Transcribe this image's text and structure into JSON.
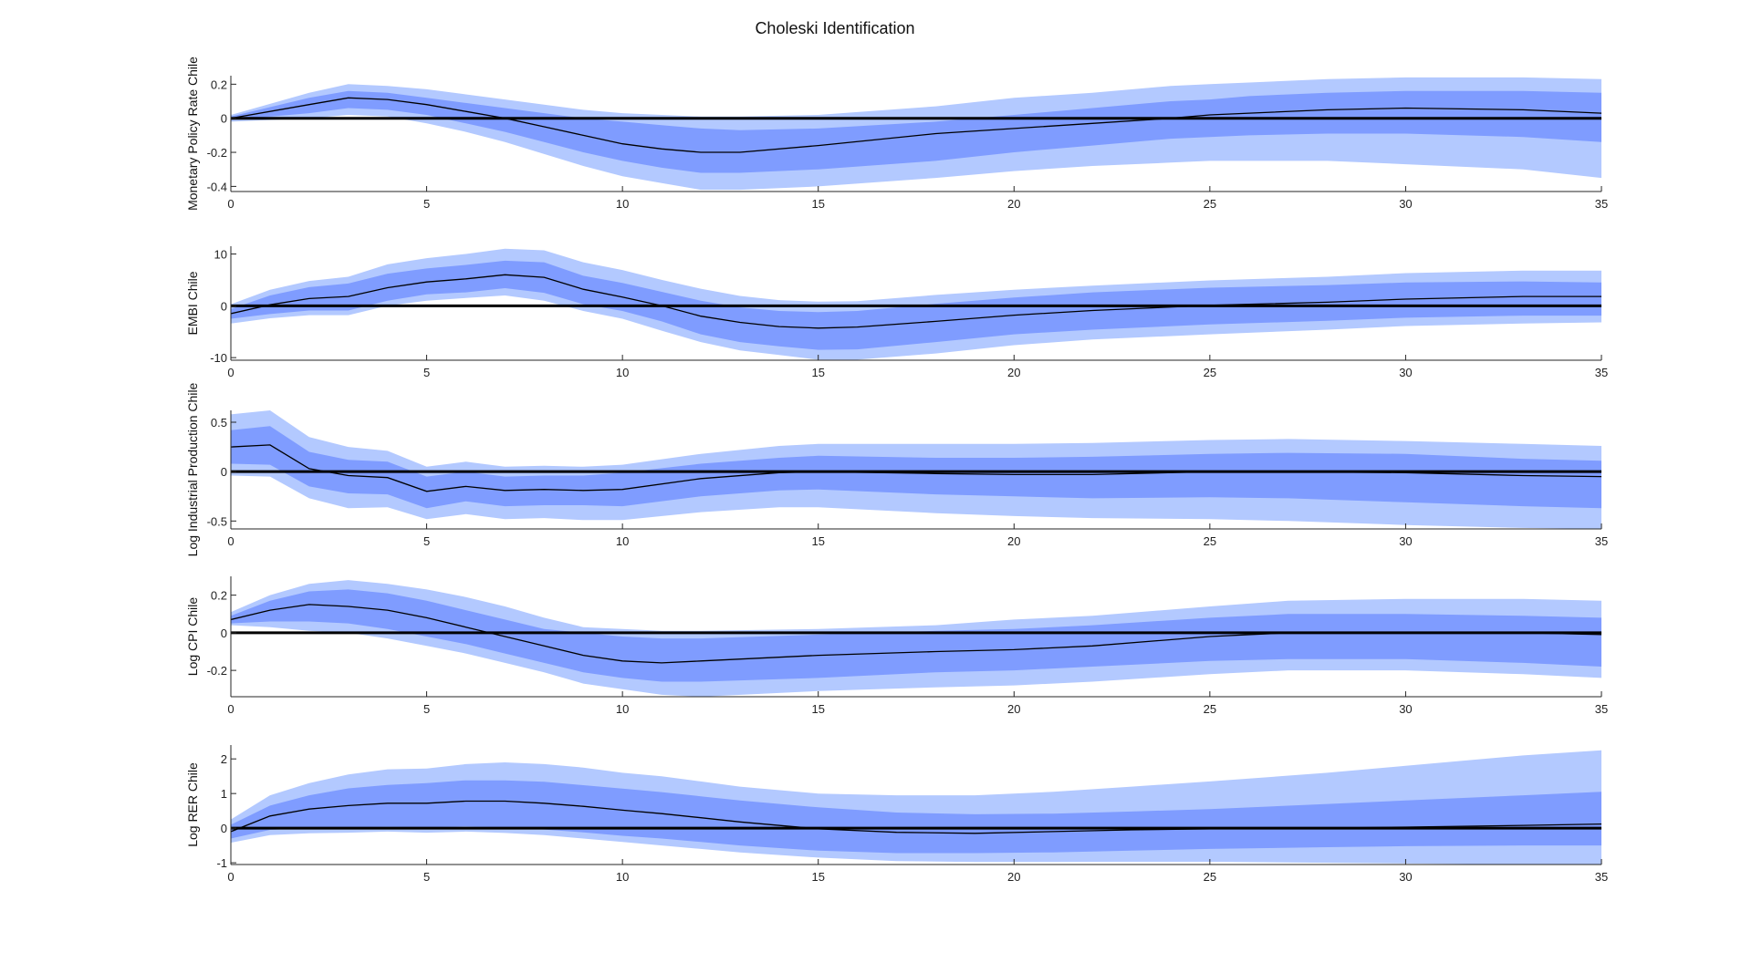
{
  "figure_title": "Choleski Identification",
  "colors": {
    "outer_band": "#b3c9ff",
    "inner_band": "#7f9cff",
    "median": "#000000",
    "zero_line": "#000000",
    "axis": "#262626"
  },
  "chart_data": [
    {
      "type": "area",
      "ylabel": "Monetary Policy Rate Chile",
      "xlim": [
        0,
        35
      ],
      "ylim": [
        -0.43,
        0.25
      ],
      "x_ticks": [
        0,
        5,
        10,
        15,
        20,
        25,
        30,
        35
      ],
      "y_ticks": [
        -0.4,
        -0.2,
        0,
        0.2
      ],
      "y_tick_labels": [
        "-0.4",
        "-0.2",
        "0",
        "0.2"
      ],
      "x": [
        0,
        2,
        3,
        4,
        5,
        6,
        7,
        8,
        9,
        10,
        11,
        12,
        13,
        15,
        18,
        20,
        22,
        24,
        25,
        26,
        28,
        30,
        33,
        35
      ],
      "median": [
        0,
        0.08,
        0.12,
        0.11,
        0.08,
        0.04,
        0.0,
        -0.05,
        -0.1,
        -0.15,
        -0.18,
        -0.2,
        -0.2,
        -0.16,
        -0.09,
        -0.06,
        -0.03,
        0.0,
        0.02,
        0.03,
        0.05,
        0.06,
        0.05,
        0.03
      ],
      "inner_lower": [
        -0.01,
        0.03,
        0.06,
        0.05,
        0.02,
        -0.03,
        -0.08,
        -0.14,
        -0.2,
        -0.25,
        -0.29,
        -0.32,
        -0.32,
        -0.3,
        -0.25,
        -0.2,
        -0.16,
        -0.12,
        -0.11,
        -0.1,
        -0.09,
        -0.09,
        -0.11,
        -0.14
      ],
      "inner_upper": [
        0.01,
        0.12,
        0.16,
        0.15,
        0.12,
        0.09,
        0.06,
        0.03,
        0.0,
        -0.02,
        -0.04,
        -0.06,
        -0.07,
        -0.06,
        -0.02,
        0.02,
        0.06,
        0.1,
        0.11,
        0.13,
        0.15,
        0.16,
        0.16,
        0.15
      ],
      "outer_lower": [
        -0.02,
        0.0,
        0.02,
        0.01,
        -0.03,
        -0.08,
        -0.14,
        -0.21,
        -0.28,
        -0.34,
        -0.38,
        -0.42,
        -0.42,
        -0.4,
        -0.35,
        -0.31,
        -0.28,
        -0.26,
        -0.25,
        -0.25,
        -0.25,
        -0.27,
        -0.3,
        -0.35
      ],
      "outer_upper": [
        0.02,
        0.15,
        0.2,
        0.19,
        0.17,
        0.14,
        0.11,
        0.08,
        0.05,
        0.03,
        0.02,
        0.01,
        0.01,
        0.02,
        0.07,
        0.12,
        0.15,
        0.19,
        0.2,
        0.21,
        0.23,
        0.24,
        0.24,
        0.23
      ]
    },
    {
      "type": "area",
      "ylabel": "EMBI Chile",
      "xlim": [
        0,
        35
      ],
      "ylim": [
        -10.5,
        11.5
      ],
      "x_ticks": [
        0,
        5,
        10,
        15,
        20,
        25,
        30,
        35
      ],
      "y_ticks": [
        -10,
        0,
        10
      ],
      "y_tick_labels": [
        "-10",
        "0",
        "10"
      ],
      "x": [
        0,
        1,
        2,
        3,
        4,
        5,
        6,
        7,
        8,
        9,
        10,
        11,
        12,
        13,
        14,
        15,
        16,
        18,
        20,
        22,
        25,
        28,
        30,
        33,
        35
      ],
      "median": [
        -1.5,
        0.2,
        1.4,
        1.8,
        3.5,
        4.6,
        5.2,
        6.0,
        5.5,
        3.2,
        1.7,
        0.0,
        -2.0,
        -3.2,
        -4.0,
        -4.3,
        -4.1,
        -3.0,
        -1.8,
        -0.9,
        0.1,
        0.7,
        1.3,
        1.8,
        1.8
      ],
      "inner_lower": [
        -2.5,
        -1.6,
        -0.9,
        -0.9,
        1.0,
        2.2,
        2.6,
        3.4,
        2.5,
        0.3,
        -1.0,
        -3.0,
        -5.5,
        -7.0,
        -7.8,
        -8.5,
        -8.4,
        -7.0,
        -5.5,
        -4.6,
        -3.6,
        -2.9,
        -2.3,
        -1.9,
        -1.9
      ],
      "inner_upper": [
        -0.6,
        2.0,
        3.6,
        4.3,
        6.2,
        7.2,
        7.9,
        8.7,
        8.4,
        5.8,
        4.4,
        2.7,
        1.0,
        -0.3,
        -1.0,
        -1.2,
        -1.0,
        0.4,
        1.6,
        2.6,
        3.5,
        4.0,
        4.5,
        4.7,
        4.5
      ],
      "outer_lower": [
        -3.4,
        -2.4,
        -1.8,
        -1.8,
        0.0,
        1.0,
        1.5,
        2.0,
        1.0,
        -1.0,
        -2.5,
        -4.8,
        -7.0,
        -8.6,
        -9.5,
        -10.4,
        -10.4,
        -9.2,
        -7.6,
        -6.5,
        -5.5,
        -4.6,
        -3.9,
        -3.4,
        -3.2
      ],
      "outer_upper": [
        0.3,
        3.1,
        4.8,
        5.6,
        8.0,
        9.2,
        10.0,
        11.0,
        10.7,
        8.4,
        6.9,
        5.0,
        3.3,
        1.9,
        1.1,
        0.8,
        0.9,
        2.1,
        3.1,
        3.9,
        4.9,
        5.6,
        6.3,
        6.8,
        6.8
      ]
    },
    {
      "type": "area",
      "ylabel": "Log Industrial Production Chile",
      "xlim": [
        0,
        35
      ],
      "ylim": [
        -0.58,
        0.62
      ],
      "x_ticks": [
        0,
        5,
        10,
        15,
        20,
        25,
        30,
        35
      ],
      "y_ticks": [
        -0.5,
        0,
        0.5
      ],
      "y_tick_labels": [
        "-0.5",
        "0",
        "0.5"
      ],
      "x": [
        0,
        1,
        2,
        3,
        4,
        5,
        6,
        7,
        8,
        9,
        10,
        12,
        14,
        15,
        18,
        20,
        22,
        25,
        27,
        30,
        33,
        35
      ],
      "median": [
        0.25,
        0.27,
        0.03,
        -0.04,
        -0.06,
        -0.2,
        -0.15,
        -0.19,
        -0.18,
        -0.19,
        -0.18,
        -0.07,
        -0.01,
        0.0,
        -0.02,
        -0.03,
        -0.03,
        0.0,
        0.0,
        -0.01,
        -0.04,
        -0.05
      ],
      "inner_lower": [
        0.08,
        0.07,
        -0.15,
        -0.22,
        -0.23,
        -0.37,
        -0.3,
        -0.35,
        -0.34,
        -0.34,
        -0.35,
        -0.25,
        -0.19,
        -0.18,
        -0.23,
        -0.25,
        -0.27,
        -0.26,
        -0.27,
        -0.31,
        -0.35,
        -0.37
      ],
      "inner_upper": [
        0.42,
        0.46,
        0.2,
        0.12,
        0.1,
        -0.05,
        0.0,
        -0.05,
        -0.04,
        -0.04,
        -0.01,
        0.08,
        0.14,
        0.16,
        0.14,
        0.14,
        0.15,
        0.18,
        0.19,
        0.18,
        0.13,
        0.11
      ],
      "outer_lower": [
        -0.04,
        -0.05,
        -0.27,
        -0.37,
        -0.36,
        -0.48,
        -0.43,
        -0.48,
        -0.47,
        -0.49,
        -0.49,
        -0.41,
        -0.36,
        -0.36,
        -0.42,
        -0.45,
        -0.47,
        -0.48,
        -0.5,
        -0.54,
        -0.57,
        -0.58
      ],
      "outer_upper": [
        0.58,
        0.62,
        0.35,
        0.25,
        0.21,
        0.05,
        0.1,
        0.05,
        0.06,
        0.05,
        0.07,
        0.18,
        0.26,
        0.28,
        0.28,
        0.28,
        0.29,
        0.32,
        0.33,
        0.31,
        0.28,
        0.26
      ]
    },
    {
      "type": "area",
      "ylabel": "Log CPI Chile",
      "xlim": [
        0,
        35
      ],
      "ylim": [
        -0.34,
        0.3
      ],
      "x_ticks": [
        0,
        5,
        10,
        15,
        20,
        25,
        30,
        35
      ],
      "y_ticks": [
        -0.2,
        0,
        0.2
      ],
      "y_tick_labels": [
        "-0.2",
        "0",
        "0.2"
      ],
      "x": [
        0,
        1,
        2,
        3,
        4,
        5,
        6,
        7,
        8,
        9,
        10,
        11,
        12,
        15,
        18,
        20,
        22,
        25,
        27,
        30,
        33,
        35
      ],
      "median": [
        0.07,
        0.12,
        0.15,
        0.14,
        0.12,
        0.08,
        0.03,
        -0.02,
        -0.07,
        -0.12,
        -0.15,
        -0.16,
        -0.15,
        -0.12,
        -0.1,
        -0.09,
        -0.07,
        -0.02,
        0.0,
        0.0,
        0.0,
        -0.01
      ],
      "inner_lower": [
        0.05,
        0.06,
        0.06,
        0.05,
        0.02,
        -0.02,
        -0.06,
        -0.11,
        -0.16,
        -0.21,
        -0.24,
        -0.26,
        -0.26,
        -0.24,
        -0.21,
        -0.2,
        -0.18,
        -0.15,
        -0.14,
        -0.14,
        -0.16,
        -0.18
      ],
      "inner_upper": [
        0.09,
        0.17,
        0.22,
        0.23,
        0.21,
        0.17,
        0.12,
        0.07,
        0.02,
        0.0,
        -0.02,
        -0.03,
        -0.03,
        -0.01,
        0.01,
        0.02,
        0.04,
        0.08,
        0.1,
        0.1,
        0.09,
        0.08
      ],
      "outer_lower": [
        0.04,
        0.03,
        0.01,
        0.0,
        -0.03,
        -0.07,
        -0.11,
        -0.16,
        -0.21,
        -0.27,
        -0.3,
        -0.33,
        -0.34,
        -0.31,
        -0.29,
        -0.28,
        -0.26,
        -0.22,
        -0.2,
        -0.2,
        -0.22,
        -0.24
      ],
      "outer_upper": [
        0.11,
        0.2,
        0.26,
        0.28,
        0.26,
        0.23,
        0.19,
        0.14,
        0.08,
        0.03,
        0.02,
        0.01,
        0.01,
        0.02,
        0.04,
        0.07,
        0.09,
        0.14,
        0.17,
        0.18,
        0.18,
        0.17
      ]
    },
    {
      "type": "area",
      "ylabel": "Log RER Chile",
      "xlim": [
        0,
        35
      ],
      "ylim": [
        -1.05,
        2.4
      ],
      "x_ticks": [
        0,
        5,
        10,
        15,
        20,
        25,
        30,
        35
      ],
      "y_ticks": [
        -1,
        0,
        1,
        2
      ],
      "y_tick_labels": [
        "-1",
        "0",
        "1",
        "2"
      ],
      "x": [
        0,
        1,
        2,
        3,
        4,
        5,
        6,
        7,
        8,
        9,
        10,
        11,
        12,
        13,
        15,
        17,
        19,
        21,
        23,
        25,
        28,
        30,
        33,
        35
      ],
      "median": [
        -0.1,
        0.35,
        0.55,
        0.65,
        0.72,
        0.72,
        0.78,
        0.78,
        0.72,
        0.63,
        0.52,
        0.42,
        0.3,
        0.18,
        -0.02,
        -0.12,
        -0.15,
        -0.1,
        -0.05,
        -0.02,
        0.0,
        0.03,
        0.08,
        0.12
      ],
      "inner_lower": [
        -0.3,
        -0.05,
        0.0,
        0.02,
        0.04,
        0.02,
        0.05,
        0.02,
        -0.04,
        -0.12,
        -0.22,
        -0.3,
        -0.4,
        -0.5,
        -0.65,
        -0.72,
        -0.72,
        -0.7,
        -0.65,
        -0.6,
        -0.55,
        -0.52,
        -0.5,
        -0.5
      ],
      "inner_upper": [
        0.1,
        0.65,
        0.95,
        1.15,
        1.25,
        1.3,
        1.38,
        1.38,
        1.34,
        1.24,
        1.14,
        1.04,
        0.92,
        0.8,
        0.6,
        0.45,
        0.4,
        0.42,
        0.48,
        0.55,
        0.7,
        0.8,
        0.95,
        1.05
      ],
      "outer_lower": [
        -0.42,
        -0.2,
        -0.15,
        -0.13,
        -0.1,
        -0.13,
        -0.1,
        -0.14,
        -0.2,
        -0.3,
        -0.4,
        -0.5,
        -0.6,
        -0.7,
        -0.85,
        -0.95,
        -0.98,
        -0.98,
        -0.97,
        -0.97,
        -1.0,
        -1.02,
        -1.05,
        -1.05
      ],
      "outer_upper": [
        0.25,
        0.95,
        1.3,
        1.55,
        1.7,
        1.72,
        1.85,
        1.9,
        1.85,
        1.75,
        1.6,
        1.5,
        1.35,
        1.2,
        1.0,
        0.95,
        0.95,
        1.05,
        1.2,
        1.35,
        1.6,
        1.8,
        2.1,
        2.25
      ]
    }
  ]
}
